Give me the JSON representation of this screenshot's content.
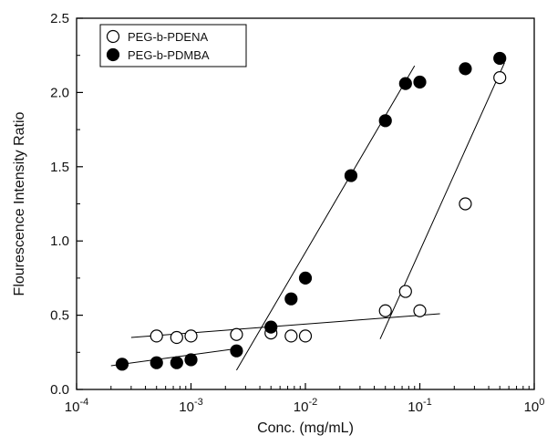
{
  "chart_data": {
    "type": "scatter",
    "xscale": "log",
    "xlim": [
      0.0001,
      1
    ],
    "ylim": [
      0.0,
      2.5
    ],
    "xlabel": "Conc. (mg/mL)",
    "ylabel": "Flourescence Intensity Ratio",
    "x_ticks": [
      {
        "value": 0.0001,
        "base": "10",
        "exp": "-4"
      },
      {
        "value": 0.001,
        "base": "10",
        "exp": "-3"
      },
      {
        "value": 0.01,
        "base": "10",
        "exp": "-2"
      },
      {
        "value": 0.1,
        "base": "10",
        "exp": "-1"
      },
      {
        "value": 1,
        "base": "10",
        "exp": "0"
      }
    ],
    "y_ticks": [
      {
        "value": 0.0,
        "label": "0.0"
      },
      {
        "value": 0.5,
        "label": "0.5"
      },
      {
        "value": 1.0,
        "label": "1.0"
      },
      {
        "value": 1.5,
        "label": "1.5"
      },
      {
        "value": 2.0,
        "label": "2.0"
      },
      {
        "value": 2.5,
        "label": "2.5"
      }
    ],
    "legend_position": "top-left",
    "series": [
      {
        "name": "PEG-b-PDENA",
        "marker": "open-circle",
        "points": [
          {
            "x": 0.0005,
            "y": 0.36
          },
          {
            "x": 0.00075,
            "y": 0.35
          },
          {
            "x": 0.001,
            "y": 0.36
          },
          {
            "x": 0.0025,
            "y": 0.37
          },
          {
            "x": 0.005,
            "y": 0.38
          },
          {
            "x": 0.0075,
            "y": 0.36
          },
          {
            "x": 0.01,
            "y": 0.36
          },
          {
            "x": 0.05,
            "y": 0.53
          },
          {
            "x": 0.075,
            "y": 0.66
          },
          {
            "x": 0.1,
            "y": 0.53
          },
          {
            "x": 0.25,
            "y": 1.25
          },
          {
            "x": 0.5,
            "y": 2.1
          }
        ]
      },
      {
        "name": "PEG-b-PDMBA",
        "marker": "filled-circle",
        "points": [
          {
            "x": 0.00025,
            "y": 0.17
          },
          {
            "x": 0.0005,
            "y": 0.18
          },
          {
            "x": 0.00075,
            "y": 0.18
          },
          {
            "x": 0.001,
            "y": 0.2
          },
          {
            "x": 0.0025,
            "y": 0.26
          },
          {
            "x": 0.005,
            "y": 0.42
          },
          {
            "x": 0.0075,
            "y": 0.61
          },
          {
            "x": 0.01,
            "y": 0.75
          },
          {
            "x": 0.025,
            "y": 1.44
          },
          {
            "x": 0.05,
            "y": 1.81
          },
          {
            "x": 0.075,
            "y": 2.06
          },
          {
            "x": 0.1,
            "y": 2.07
          },
          {
            "x": 0.25,
            "y": 2.16
          },
          {
            "x": 0.5,
            "y": 2.23
          }
        ]
      }
    ],
    "fit_lines": [
      {
        "x1": 0.0002,
        "y1": 0.16,
        "x2": 0.0028,
        "y2": 0.28
      },
      {
        "x1": 0.0003,
        "y1": 0.35,
        "x2": 0.15,
        "y2": 0.51
      },
      {
        "x1": 0.0025,
        "y1": 0.13,
        "x2": 0.09,
        "y2": 2.18
      },
      {
        "x1": 0.045,
        "y1": 0.34,
        "x2": 0.55,
        "y2": 2.2
      }
    ]
  }
}
